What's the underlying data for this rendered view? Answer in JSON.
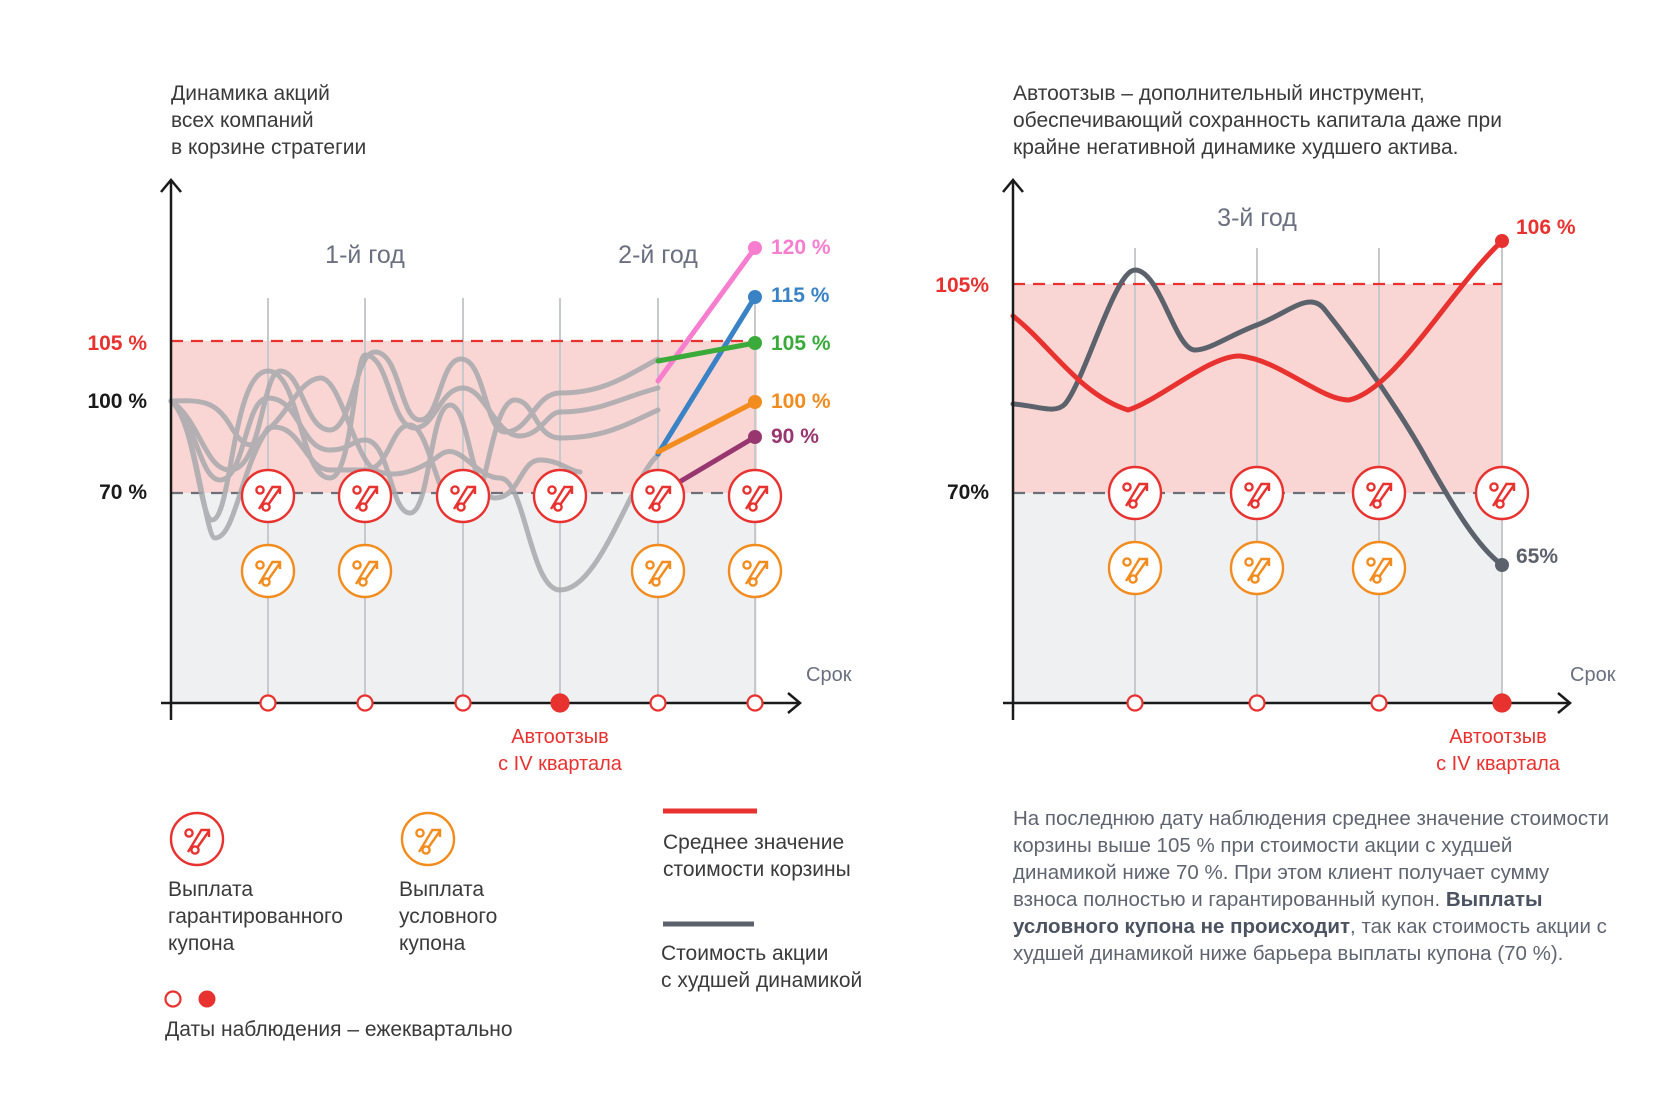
{
  "colors": {
    "red": "#e8322f",
    "orange": "#f28c1e",
    "gray_line": "#5c626c",
    "pink": "#f77ecf",
    "blue": "#3a82c6",
    "green": "#3aab3a",
    "purple": "#983670",
    "zone_pink": "#f9d6d3",
    "zone_gray": "#eef0f2",
    "axis": "#1a1a1a"
  },
  "left_chart": {
    "caption": [
      "Динамика акций",
      "всех компаний",
      "в корзине стратегии"
    ],
    "year1_label": "1-й год",
    "year2_label": "2-й год",
    "barrier_105_label": "105 %",
    "start_100_label": "100 %",
    "barrier_70_label": "70 %",
    "axis_x_label": "Срок",
    "autocall_note": [
      "Автоотзыв",
      "с IV квартала"
    ],
    "end_values": [
      {
        "label": "120 %",
        "value": 120,
        "color": "#f77ecf"
      },
      {
        "label": "115 %",
        "value": 115,
        "color": "#3a82c6"
      },
      {
        "label": "105 %",
        "value": 105,
        "color": "#3aab3a"
      },
      {
        "label": "100 %",
        "value": 100,
        "color": "#f28c1e"
      },
      {
        "label": "90 %",
        "value": 90,
        "color": "#983670"
      }
    ]
  },
  "right_chart": {
    "caption": [
      "Автоотзыв – дополнительный инструмент,",
      "обеспечивающий сохранность капитала даже при",
      "крайне негативной динамике худшего актива."
    ],
    "year3_label": "3-й год",
    "barrier_105_label": "105%",
    "barrier_70_label": "70%",
    "axis_x_label": "Срок",
    "basket_end_label": "106 %",
    "worst_end_label": "65%",
    "autocall_note": [
      "Автоотзыв",
      "с IV квартала"
    ]
  },
  "legend": {
    "guaranteed": [
      "Выплата",
      "гарантированного",
      "купона"
    ],
    "conditional": [
      "Выплата",
      "условного",
      "купона"
    ],
    "basket_line": [
      "Среднее значение",
      "стоимости корзины"
    ],
    "worst_line": [
      "Стоимость акции",
      "с худшей динамикой"
    ],
    "observation": "Даты наблюдения – ежеквартально"
  },
  "note": {
    "part1": "На последнюю дату наблюдения среднее значение стоимости корзины выше 105 % при стоимости акции с худшей динамикой  ниже 70 %. При этом клиент получает сумму взноса полностью и гарантированный купон. ",
    "bold": "Выплаты условного купона не происходит",
    "part2": ", так как стоимость акции с худшей динамикой ниже барьера выплаты купона (70 %)."
  }
}
